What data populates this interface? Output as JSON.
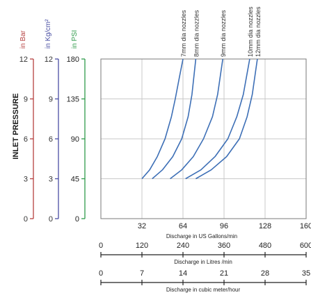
{
  "chart_data": {
    "type": "line",
    "y_title": "INLET PRESSURE",
    "pressure_scales": [
      {
        "unit": "in Bar",
        "ticks": [
          "0",
          "3",
          "6",
          "9",
          "12"
        ],
        "color": "#b5403f"
      },
      {
        "unit": "in Kg/cm²",
        "ticks": [
          "0",
          "3",
          "6",
          "9",
          "12"
        ],
        "color": "#4a4fa3"
      },
      {
        "unit": "in PSI",
        "ticks": [
          "0",
          "45",
          "90",
          "135",
          "180"
        ],
        "color": "#2f9a4a"
      }
    ],
    "ylim_psi": [
      0,
      180
    ],
    "x_scales": [
      {
        "label": "Discharge in US Gallons/min",
        "ticks": [
          "32",
          "64",
          "96",
          "128",
          "160"
        ],
        "range": [
          0,
          160
        ]
      },
      {
        "label": "Discharge in Litres /min",
        "ticks": [
          "0",
          "120",
          "240",
          "360",
          "480",
          "600"
        ],
        "range": [
          0,
          600
        ]
      },
      {
        "label": "Discharge in cubic meter/hour",
        "ticks": [
          "0",
          "7",
          "14",
          "21",
          "28",
          "35"
        ],
        "range": [
          0,
          35
        ]
      }
    ],
    "grid": true,
    "series": [
      {
        "name": "7mm dia nozzles",
        "x": [
          32,
          38,
          44,
          50,
          55,
          58,
          61,
          64
        ],
        "y": [
          45,
          55,
          70,
          90,
          115,
          135,
          158,
          180
        ]
      },
      {
        "name": "8mm dia nozzles",
        "x": [
          40,
          48,
          56,
          63,
          68,
          71,
          74
        ],
        "y": [
          45,
          55,
          70,
          90,
          115,
          140,
          180
        ]
      },
      {
        "name": "9mm dia nozzles",
        "x": [
          54,
          63,
          72,
          80,
          87,
          91,
          95
        ],
        "y": [
          45,
          55,
          70,
          90,
          115,
          140,
          180
        ]
      },
      {
        "name": "10mm dia nozzles",
        "x": [
          66,
          78,
          89,
          99,
          106,
          111,
          116
        ],
        "y": [
          45,
          55,
          70,
          90,
          115,
          140,
          180
        ]
      },
      {
        "name": "12mm dia nozzles",
        "x": [
          74,
          86,
          98,
          108,
          114,
          118,
          122
        ],
        "y": [
          45,
          55,
          70,
          90,
          115,
          140,
          180
        ]
      }
    ],
    "line_color": "#3d6fb6"
  }
}
